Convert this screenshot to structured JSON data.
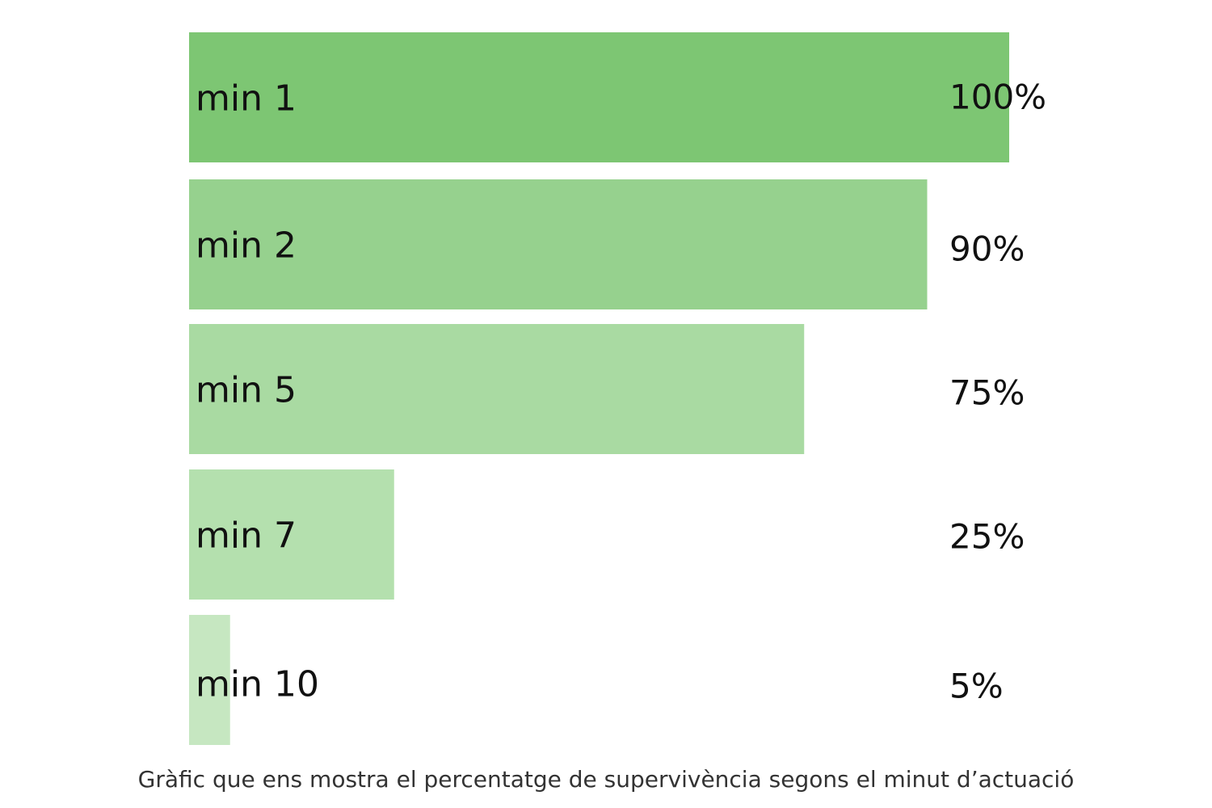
{
  "chart_data": {
    "type": "bar",
    "orientation": "horizontal",
    "categories": [
      "min 1",
      "min 2",
      "min 5",
      "min 7",
      "min 10"
    ],
    "values": [
      100,
      90,
      75,
      25,
      5
    ],
    "value_labels": [
      "100%",
      "90%",
      "75%",
      "25%",
      "5%"
    ],
    "unit": "%",
    "xlim": [
      0,
      100
    ],
    "grid": false,
    "legend": "none",
    "colors": [
      "#7dc673",
      "#96d18e",
      "#a9daa2",
      "#b4e0ae",
      "#c6e7c1"
    ]
  },
  "caption": "Gràfic que ens mostra el percentatge de supervivència segons el minut d’actuació"
}
